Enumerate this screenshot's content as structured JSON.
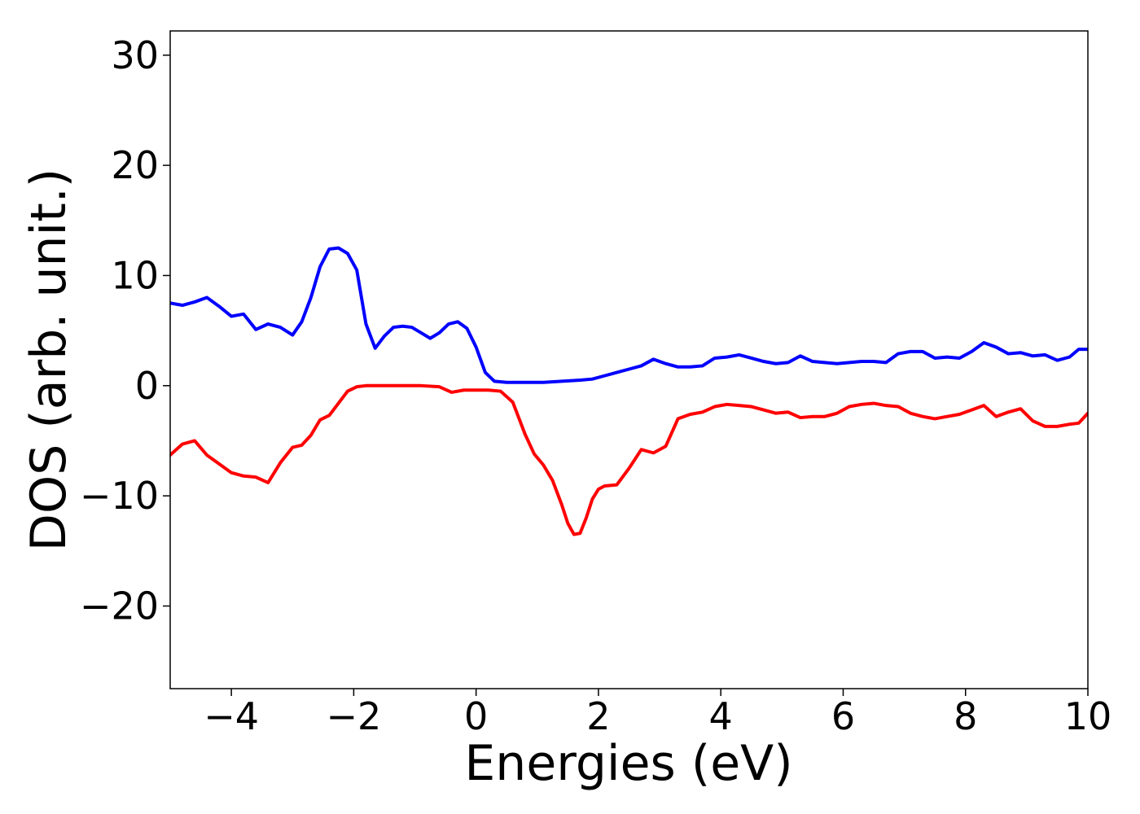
{
  "chart_data": {
    "type": "line",
    "title": "",
    "xlabel": "Energies (eV)",
    "ylabel": "DOS (arb. unit.)",
    "xlim": [
      -5,
      10
    ],
    "ylim": [
      -27.5,
      32.2
    ],
    "xticks": [
      -4,
      -2,
      0,
      2,
      4,
      6,
      8,
      10
    ],
    "xtick_labels": [
      "−4",
      "−2",
      "0",
      "2",
      "4",
      "6",
      "8",
      "10"
    ],
    "yticks": [
      -20,
      -10,
      0,
      10,
      20,
      30
    ],
    "ytick_labels": [
      "−20",
      "−10",
      "0",
      "10",
      "20",
      "30"
    ],
    "grid": false,
    "legend": "none",
    "series": [
      {
        "color": "#0000ff",
        "x": [
          -5.0,
          -4.8,
          -4.6,
          -4.4,
          -4.2,
          -4.0,
          -3.8,
          -3.6,
          -3.4,
          -3.2,
          -3.0,
          -2.85,
          -2.7,
          -2.55,
          -2.4,
          -2.25,
          -2.1,
          -1.95,
          -1.8,
          -1.65,
          -1.5,
          -1.35,
          -1.2,
          -1.05,
          -0.9,
          -0.75,
          -0.6,
          -0.45,
          -0.3,
          -0.15,
          0.0,
          0.15,
          0.3,
          0.5,
          0.8,
          1.1,
          1.4,
          1.7,
          1.9,
          2.1,
          2.3,
          2.5,
          2.7,
          2.9,
          3.1,
          3.3,
          3.5,
          3.7,
          3.9,
          4.1,
          4.3,
          4.5,
          4.7,
          4.9,
          5.1,
          5.3,
          5.5,
          5.7,
          5.9,
          6.1,
          6.3,
          6.5,
          6.7,
          6.9,
          7.1,
          7.3,
          7.5,
          7.7,
          7.9,
          8.1,
          8.3,
          8.5,
          8.7,
          8.9,
          9.1,
          9.3,
          9.5,
          9.7,
          9.85,
          10.0
        ],
        "y": [
          7.5,
          7.3,
          7.6,
          8.0,
          7.2,
          6.3,
          6.5,
          5.1,
          5.6,
          5.3,
          4.6,
          5.8,
          8.0,
          10.8,
          12.4,
          12.5,
          12.0,
          10.5,
          5.6,
          3.4,
          4.5,
          5.3,
          5.4,
          5.3,
          4.8,
          4.3,
          4.8,
          5.6,
          5.8,
          5.2,
          3.5,
          1.2,
          0.4,
          0.3,
          0.3,
          0.3,
          0.4,
          0.5,
          0.6,
          0.9,
          1.2,
          1.5,
          1.8,
          2.4,
          2.0,
          1.7,
          1.7,
          1.8,
          2.5,
          2.6,
          2.8,
          2.5,
          2.2,
          2.0,
          2.1,
          2.7,
          2.2,
          2.1,
          2.0,
          2.1,
          2.2,
          2.2,
          2.1,
          2.9,
          3.1,
          3.1,
          2.5,
          2.6,
          2.5,
          3.1,
          3.9,
          3.5,
          2.9,
          3.0,
          2.7,
          2.8,
          2.3,
          2.6,
          3.3,
          3.3
        ]
      },
      {
        "color": "#ff0000",
        "x": [
          -5.0,
          -4.8,
          -4.6,
          -4.4,
          -4.2,
          -4.0,
          -3.8,
          -3.6,
          -3.4,
          -3.2,
          -3.0,
          -2.85,
          -2.7,
          -2.55,
          -2.4,
          -2.25,
          -2.1,
          -1.95,
          -1.8,
          -1.5,
          -1.2,
          -0.9,
          -0.6,
          -0.4,
          -0.2,
          0.0,
          0.2,
          0.4,
          0.6,
          0.8,
          0.95,
          1.1,
          1.25,
          1.4,
          1.5,
          1.6,
          1.7,
          1.8,
          1.9,
          2.0,
          2.1,
          2.3,
          2.5,
          2.7,
          2.9,
          3.1,
          3.3,
          3.5,
          3.7,
          3.9,
          4.1,
          4.3,
          4.5,
          4.7,
          4.9,
          5.1,
          5.3,
          5.5,
          5.7,
          5.9,
          6.1,
          6.3,
          6.5,
          6.7,
          6.9,
          7.1,
          7.3,
          7.5,
          7.7,
          7.9,
          8.1,
          8.3,
          8.5,
          8.7,
          8.9,
          9.1,
          9.3,
          9.5,
          9.7,
          9.85,
          10.0
        ],
        "y": [
          -6.3,
          -5.3,
          -5.0,
          -6.3,
          -7.1,
          -7.9,
          -8.2,
          -8.3,
          -8.8,
          -7.0,
          -5.6,
          -5.4,
          -4.5,
          -3.1,
          -2.7,
          -1.6,
          -0.5,
          -0.1,
          0.0,
          0.0,
          0.0,
          0.0,
          -0.1,
          -0.6,
          -0.4,
          -0.4,
          -0.4,
          -0.5,
          -1.5,
          -4.4,
          -6.2,
          -7.2,
          -8.6,
          -10.8,
          -12.5,
          -13.5,
          -13.4,
          -12.0,
          -10.3,
          -9.4,
          -9.1,
          -9.0,
          -7.5,
          -5.8,
          -6.1,
          -5.5,
          -3.0,
          -2.6,
          -2.4,
          -1.9,
          -1.7,
          -1.8,
          -1.9,
          -2.2,
          -2.5,
          -2.4,
          -2.9,
          -2.8,
          -2.8,
          -2.5,
          -1.9,
          -1.7,
          -1.6,
          -1.8,
          -1.9,
          -2.5,
          -2.8,
          -3.0,
          -2.8,
          -2.6,
          -2.2,
          -1.8,
          -2.8,
          -2.4,
          -2.1,
          -3.2,
          -3.7,
          -3.7,
          -3.5,
          -3.4,
          -2.5
        ]
      }
    ]
  }
}
